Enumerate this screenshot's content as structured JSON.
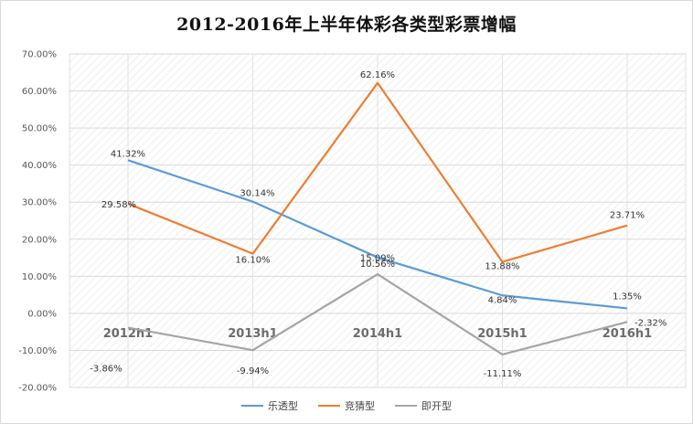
{
  "chart_data": {
    "type": "line",
    "title": "2012-2016年上半年体彩各类型彩票增幅",
    "categories": [
      "2012h1",
      "2013h1",
      "2014h1",
      "2015h1",
      "2016h1"
    ],
    "ylim": [
      -20,
      70
    ],
    "ytick_values": [
      -20,
      -10,
      0,
      10,
      20,
      30,
      40,
      50,
      60,
      70
    ],
    "ytick_labels": [
      "-20.00%",
      "-10.00%",
      "0.00%",
      "10.00%",
      "20.00%",
      "30.00%",
      "40.00%",
      "50.00%",
      "60.00%",
      "70.00%"
    ],
    "grid": true,
    "legend_position": "bottom",
    "series": [
      {
        "name": "乐透型",
        "color": "#5b9bd5",
        "values": [
          41.32,
          30.14,
          15.09,
          4.84,
          1.35
        ],
        "labels": [
          "41.32%",
          "30.14%",
          "15.09%",
          "4.84%",
          "1.35%"
        ]
      },
      {
        "name": "竞猜型",
        "color": "#ed7d31",
        "values": [
          29.58,
          16.1,
          62.16,
          13.88,
          23.71
        ],
        "labels": [
          "29.58%",
          "16.10%",
          "62.16%",
          "13.88%",
          "23.71%"
        ]
      },
      {
        "name": "即开型",
        "color": "#a5a5a5",
        "values": [
          -3.86,
          -9.94,
          10.56,
          -11.11,
          -2.32
        ],
        "labels": [
          "-3.86%",
          "-9.94%",
          "10.56%",
          "-11.11%",
          "-2.32%"
        ]
      }
    ]
  }
}
